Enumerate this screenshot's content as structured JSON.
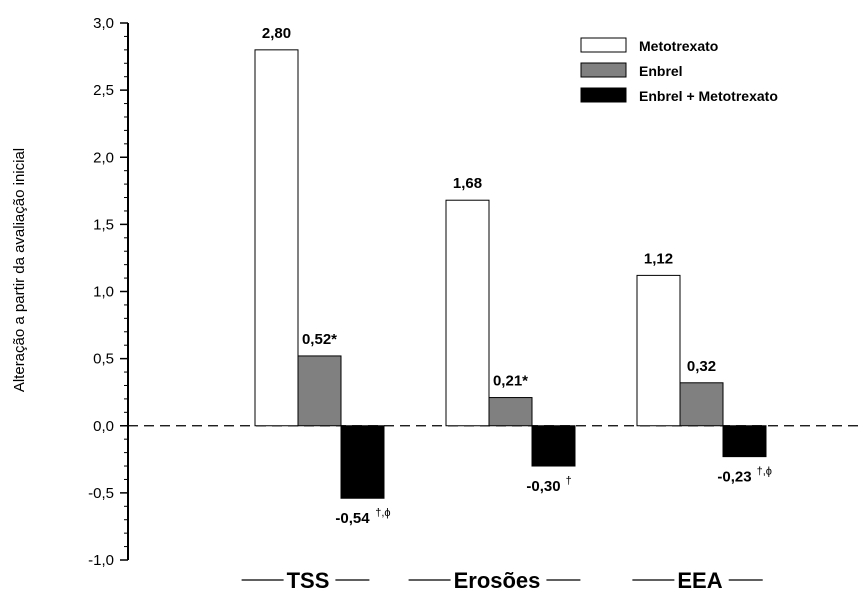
{
  "chart_data": {
    "type": "bar",
    "ylabel": "Alteração a partir da avaliação inicial",
    "ylim": [
      -1.0,
      3.0
    ],
    "y_ticks": [
      "3,0",
      "2,5",
      "2,0",
      "1,5",
      "1,0",
      "0,5",
      "0,0",
      "-0,5",
      "-1,0"
    ],
    "y_tick_values": [
      3.0,
      2.5,
      2.0,
      1.5,
      1.0,
      0.5,
      0.0,
      -0.5,
      -1.0
    ],
    "categories": [
      "TSS",
      "Erosões",
      "EEA"
    ],
    "legend_position": "top-right",
    "grid": false,
    "series": [
      {
        "name": "Metotrexato",
        "fill": "#ffffff",
        "values": [
          2.8,
          1.68,
          1.12
        ],
        "labels": [
          "2,80",
          "1,68",
          "1,12"
        ],
        "markers": [
          "",
          "",
          ""
        ]
      },
      {
        "name": "Enbrel",
        "fill": "#808080",
        "values": [
          0.52,
          0.21,
          0.32
        ],
        "labels": [
          "0,52*",
          "0,21*",
          "0,32"
        ],
        "markers": [
          "",
          "",
          ""
        ]
      },
      {
        "name": "Enbrel + Metotrexato",
        "fill": "#000000",
        "values": [
          -0.54,
          -0.3,
          -0.23
        ],
        "labels": [
          "-0,54",
          "-0,30",
          "-0,23"
        ],
        "markers": [
          "†,ϕ",
          "†",
          "†,ϕ"
        ]
      }
    ]
  }
}
